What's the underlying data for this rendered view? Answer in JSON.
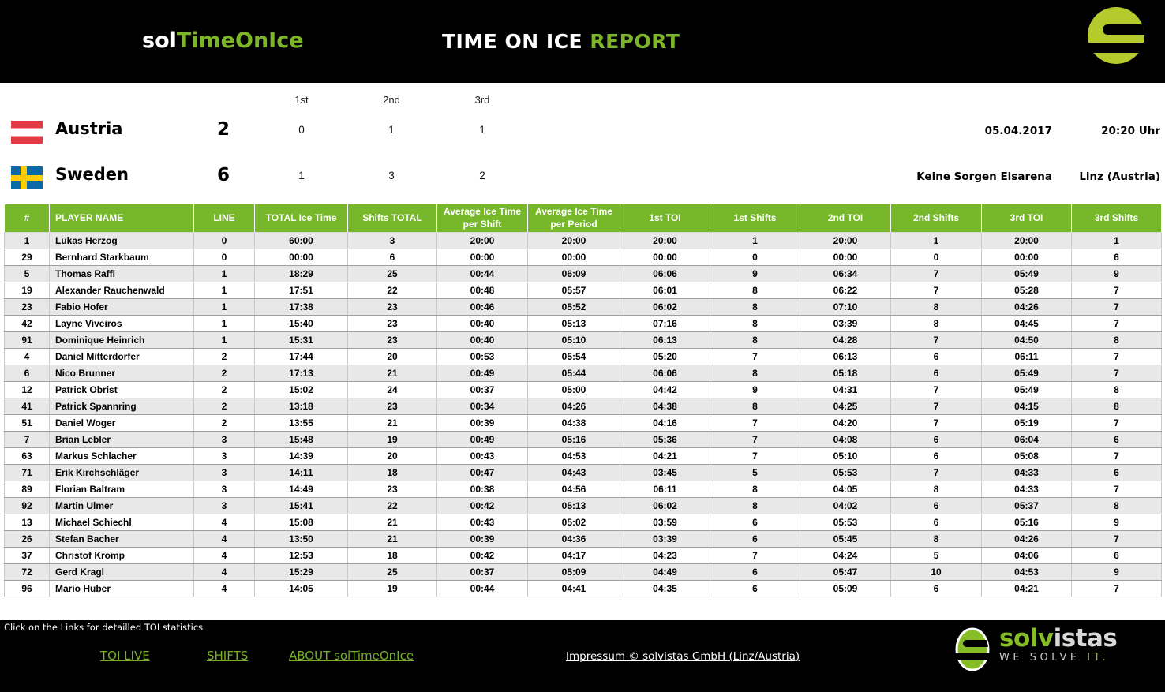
{
  "header": {
    "brand_prefix": "sol",
    "brand_suffix": "TimeOnIce",
    "title_main": "TIME ON ICE",
    "title_accent": "REPORT"
  },
  "scoreboard": {
    "period_labels": [
      "1st",
      "2nd",
      "3rd"
    ],
    "teams": [
      {
        "flag": "austria-flag",
        "name": "Austria",
        "score": "2",
        "periods": [
          "0",
          "1",
          "1"
        ]
      },
      {
        "flag": "sweden-flag",
        "name": "Sweden",
        "score": "6",
        "periods": [
          "1",
          "3",
          "2"
        ]
      }
    ],
    "meta": {
      "date": "05.04.2017",
      "time": "20:20 Uhr",
      "venue": "Keine Sorgen Eisarena",
      "location": "Linz (Austria)"
    }
  },
  "table": {
    "columns": [
      "#",
      "PLAYER NAME",
      "LINE",
      "TOTAL Ice Time",
      "Shifts TOTAL",
      "Average Ice Time per Shift",
      "Average Ice Time per Period",
      "1st TOI",
      "1st Shifts",
      "2nd TOI",
      "2nd Shifts",
      "3rd TOI",
      "3rd Shifts"
    ],
    "rows": [
      [
        "1",
        "Lukas Herzog",
        "0",
        "60:00",
        "3",
        "20:00",
        "20:00",
        "20:00",
        "1",
        "20:00",
        "1",
        "20:00",
        "1"
      ],
      [
        "29",
        "Bernhard Starkbaum",
        "0",
        "00:00",
        "6",
        "00:00",
        "00:00",
        "00:00",
        "0",
        "00:00",
        "0",
        "00:00",
        "6"
      ],
      [
        "5",
        "Thomas Raffl",
        "1",
        "18:29",
        "25",
        "00:44",
        "06:09",
        "06:06",
        "9",
        "06:34",
        "7",
        "05:49",
        "9"
      ],
      [
        "19",
        "Alexander Rauchenwald",
        "1",
        "17:51",
        "22",
        "00:48",
        "05:57",
        "06:01",
        "8",
        "06:22",
        "7",
        "05:28",
        "7"
      ],
      [
        "23",
        "Fabio Hofer",
        "1",
        "17:38",
        "23",
        "00:46",
        "05:52",
        "06:02",
        "8",
        "07:10",
        "8",
        "04:26",
        "7"
      ],
      [
        "42",
        "Layne Viveiros",
        "1",
        "15:40",
        "23",
        "00:40",
        "05:13",
        "07:16",
        "8",
        "03:39",
        "8",
        "04:45",
        "7"
      ],
      [
        "91",
        "Dominique Heinrich",
        "1",
        "15:31",
        "23",
        "00:40",
        "05:10",
        "06:13",
        "8",
        "04:28",
        "7",
        "04:50",
        "8"
      ],
      [
        "4",
        "Daniel Mitterdorfer",
        "2",
        "17:44",
        "20",
        "00:53",
        "05:54",
        "05:20",
        "7",
        "06:13",
        "6",
        "06:11",
        "7"
      ],
      [
        "6",
        "Nico Brunner",
        "2",
        "17:13",
        "21",
        "00:49",
        "05:44",
        "06:06",
        "8",
        "05:18",
        "6",
        "05:49",
        "7"
      ],
      [
        "12",
        "Patrick Obrist",
        "2",
        "15:02",
        "24",
        "00:37",
        "05:00",
        "04:42",
        "9",
        "04:31",
        "7",
        "05:49",
        "8"
      ],
      [
        "41",
        "Patrick Spannring",
        "2",
        "13:18",
        "23",
        "00:34",
        "04:26",
        "04:38",
        "8",
        "04:25",
        "7",
        "04:15",
        "8"
      ],
      [
        "51",
        "Daniel Woger",
        "2",
        "13:55",
        "21",
        "00:39",
        "04:38",
        "04:16",
        "7",
        "04:20",
        "7",
        "05:19",
        "7"
      ],
      [
        "7",
        "Brian Lebler",
        "3",
        "15:48",
        "19",
        "00:49",
        "05:16",
        "05:36",
        "7",
        "04:08",
        "6",
        "06:04",
        "6"
      ],
      [
        "63",
        "Markus Schlacher",
        "3",
        "14:39",
        "20",
        "00:43",
        "04:53",
        "04:21",
        "7",
        "05:10",
        "6",
        "05:08",
        "7"
      ],
      [
        "71",
        "Erik Kirchschläger",
        "3",
        "14:11",
        "18",
        "00:47",
        "04:43",
        "03:45",
        "5",
        "05:53",
        "7",
        "04:33",
        "6"
      ],
      [
        "89",
        "Florian Baltram",
        "3",
        "14:49",
        "23",
        "00:38",
        "04:56",
        "06:11",
        "8",
        "04:05",
        "8",
        "04:33",
        "7"
      ],
      [
        "92",
        "Martin Ulmer",
        "3",
        "15:41",
        "22",
        "00:42",
        "05:13",
        "06:02",
        "8",
        "04:02",
        "6",
        "05:37",
        "8"
      ],
      [
        "13",
        "Michael Schiechl",
        "4",
        "15:08",
        "21",
        "00:43",
        "05:02",
        "03:59",
        "6",
        "05:53",
        "6",
        "05:16",
        "9"
      ],
      [
        "26",
        "Stefan Bacher",
        "4",
        "13:50",
        "21",
        "00:39",
        "04:36",
        "03:39",
        "6",
        "05:45",
        "8",
        "04:26",
        "7"
      ],
      [
        "37",
        "Christof Kromp",
        "4",
        "12:53",
        "18",
        "00:42",
        "04:17",
        "04:23",
        "7",
        "04:24",
        "5",
        "04:06",
        "6"
      ],
      [
        "72",
        "Gerd Kragl",
        "4",
        "15:29",
        "25",
        "00:37",
        "05:09",
        "04:49",
        "6",
        "05:47",
        "10",
        "04:53",
        "9"
      ],
      [
        "96",
        "Mario Huber",
        "4",
        "14:05",
        "19",
        "00:44",
        "04:41",
        "04:35",
        "6",
        "05:09",
        "6",
        "04:21",
        "7"
      ]
    ]
  },
  "footer": {
    "hint": "Click on the Links for detailled TOI statistics",
    "links": [
      {
        "label": "TOI LIVE"
      },
      {
        "label": "SHIFTS"
      },
      {
        "label": "ABOUT solTimeOnIce"
      }
    ],
    "impressum": "Impressum © solvistas GmbH (Linz/Austria)",
    "logo": {
      "name_green": "solv",
      "name_white": "istas",
      "tagline_main": "WE SOLVE",
      "tagline_accent": "IT."
    }
  },
  "colors": {
    "accent_green": "#76b82a",
    "brand_text_green": "#7cb528",
    "table_header_green": "#76b82a",
    "row_alt_gray": "#e8e8e8",
    "logo_circle_green": "#b5ca2d",
    "solvistas_green": "#86bc25",
    "austria_red": "#e53945",
    "sweden_blue": "#0a6aa7",
    "sweden_yellow": "#fecc02"
  }
}
